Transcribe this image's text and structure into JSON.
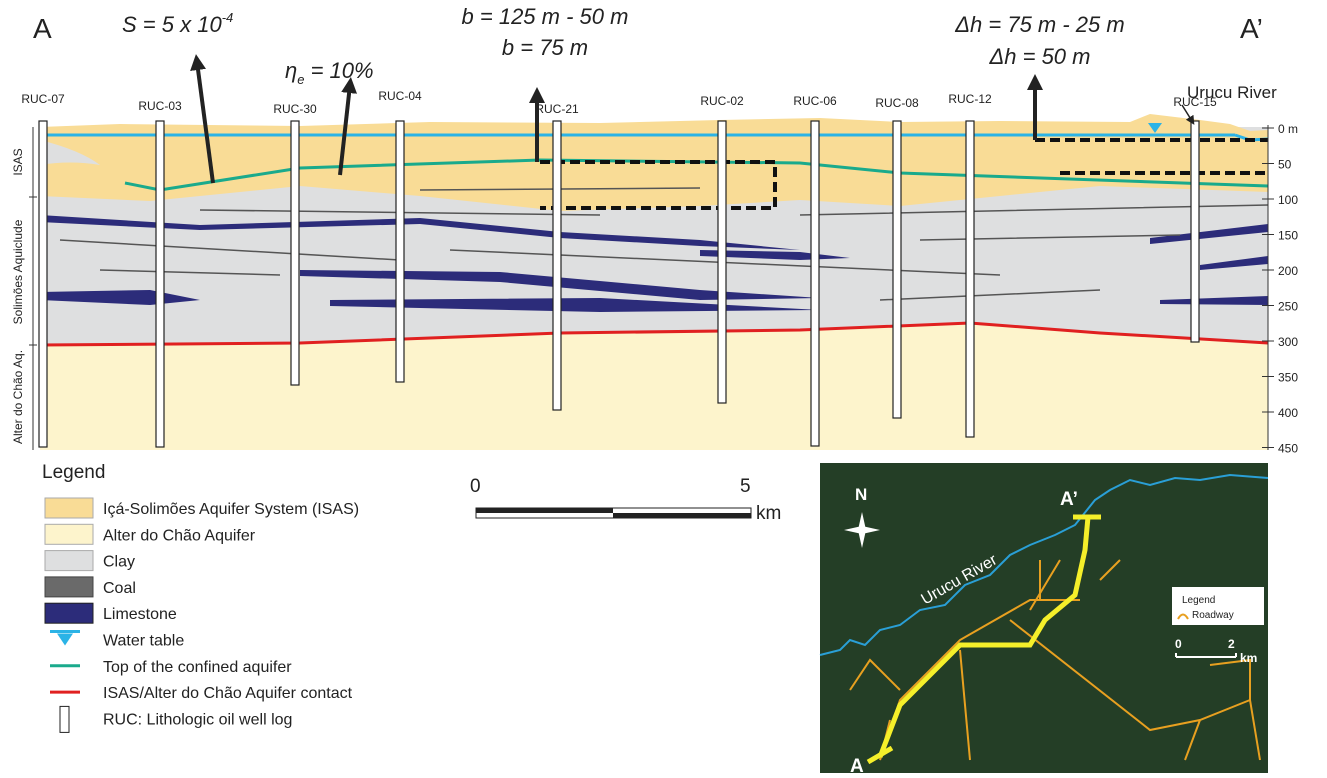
{
  "section": {
    "left_end": "A",
    "right_end": "A’",
    "river": "Urucu River",
    "annotations": {
      "storage": {
        "text": "S = 5 x 10",
        "sup": "-4"
      },
      "porosity": {
        "text": "η",
        "sub": "e",
        "rest": " = 10%"
      },
      "thickness": [
        "b = 125 m - 50 m",
        "b = 75 m"
      ],
      "head": [
        "Δh = 75 m - 25 m",
        "Δh = 50 m"
      ]
    },
    "units": [
      "ISAS",
      "Solimões Aquiclude",
      "Alter do Chão Aq."
    ],
    "wells": [
      "RUC-07",
      "RUC-03",
      "RUC-30",
      "RUC-04",
      "RUC-21",
      "RUC-02",
      "RUC-06",
      "RUC-08",
      "RUC-12",
      "RUC-15"
    ],
    "depth_ticks": [
      "0 m",
      "50",
      "100",
      "150",
      "200",
      "250",
      "300",
      "350",
      "400",
      "450"
    ]
  },
  "legend": {
    "title": "Legend",
    "items": [
      "Içá-Solimões Aquifer System (ISAS)",
      "Alter do Chão Aquifer",
      "Clay",
      "Coal",
      "Limestone",
      "Water table",
      "Top of the confined aquifer",
      "ISAS/Alter do Chão Aquifer contact",
      "RUC: Lithologic oil well log"
    ]
  },
  "scale_bar": {
    "start": "0",
    "end": "5",
    "unit": "km"
  },
  "map": {
    "north": "N",
    "river": "Urucu River",
    "start": "A",
    "end": "A’",
    "legend_title": "Legend",
    "legend_item": "Roadway",
    "scale_start": "0",
    "scale_end": "2",
    "scale_unit": "km"
  }
}
